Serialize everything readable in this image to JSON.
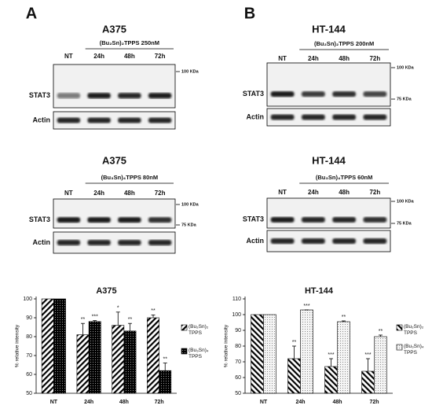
{
  "panels": [
    {
      "letter": "A",
      "blots": [
        {
          "title": "A375",
          "treatment": "(Bu₂Sn)₂TPPS 250nM",
          "lanes": [
            "NT",
            "24h",
            "48h",
            "72h"
          ],
          "markers": [
            "100 KDa"
          ],
          "rows": [
            "STAT3",
            "Actin"
          ]
        },
        {
          "title": "A375",
          "treatment": "(Bu₃Sn)₄TPPS 80nM",
          "lanes": [
            "NT",
            "24h",
            "48h",
            "72h"
          ],
          "markers": [
            "100 KDa",
            "75 KDa"
          ],
          "rows": [
            "STAT3",
            "Actin"
          ]
        }
      ]
    },
    {
      "letter": "B",
      "blots": [
        {
          "title": "HT-144",
          "treatment": "(Bu₂Sn)₂TPPS 200nM",
          "lanes": [
            "NT",
            "24h",
            "48h",
            "72h"
          ],
          "markers": [
            "100 KDa",
            "75 KDa"
          ],
          "rows": [
            "STAT3",
            "Actin"
          ]
        },
        {
          "title": "HT-144",
          "treatment": "(Bu₃Sn)₄TPPS 60nM",
          "lanes": [
            "NT",
            "24h",
            "48h",
            "72h"
          ],
          "markers": [
            "100 KDa",
            "75 KDa"
          ],
          "rows": [
            "STAT3",
            "Actin"
          ]
        }
      ]
    }
  ],
  "chart_data": [
    {
      "type": "bar",
      "title": "A375",
      "y_label": "% relative intensity",
      "categories": [
        "NT",
        "24h",
        "48h",
        "72h"
      ],
      "ylim": [
        50,
        100
      ],
      "yticks": [
        50,
        60,
        70,
        80,
        90,
        100
      ],
      "series": [
        {
          "name": "(Bu₂Sn)₂ TPPS",
          "color": "#000000",
          "pattern": "forward-hatch",
          "values": [
            100,
            81,
            86,
            90
          ],
          "errors": [
            null,
            6,
            7,
            1.5
          ],
          "labels": [
            null,
            "**",
            "*",
            "**"
          ]
        },
        {
          "name": "(Bu₃Sn)₄ TPPS",
          "color": "#000000",
          "pattern": "dots-on-dark",
          "values": [
            100,
            88,
            83,
            62
          ],
          "errors": [
            null,
            0.5,
            4,
            4
          ],
          "labels": [
            null,
            "***",
            "**",
            "**"
          ]
        }
      ]
    },
    {
      "type": "bar",
      "title": "HT-144",
      "y_label": "% relative intensity",
      "categories": [
        "NT",
        "24h",
        "48h",
        "72h"
      ],
      "ylim": [
        50,
        110
      ],
      "yticks": [
        50,
        60,
        70,
        80,
        90,
        100,
        110
      ],
      "series": [
        {
          "name": "(Bu₂Sn)₂ TPPS",
          "color": "#000000",
          "pattern": "back-hatch",
          "values": [
            100,
            72,
            67,
            64
          ],
          "errors": [
            null,
            8,
            5,
            8
          ],
          "labels": [
            null,
            "**",
            "***",
            "***"
          ]
        },
        {
          "name": "(Bu₃Sn)₄ TPPS",
          "color": "#000000",
          "pattern": "dots-on-light",
          "values": [
            100,
            103,
            95.5,
            86
          ],
          "errors": [
            null,
            0,
            0.5,
            1
          ],
          "labels": [
            null,
            "***",
            "**",
            "**"
          ]
        }
      ]
    }
  ]
}
